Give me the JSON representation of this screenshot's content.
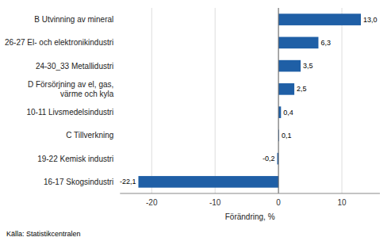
{
  "chart_data": {
    "type": "bar",
    "orientation": "horizontal",
    "categories": [
      "16-17 Skogsindustri",
      "19-22 Kemisk industri",
      "C Tillverkning",
      "10-11 Livsmedelsindustri",
      "D Försörjning av el, gas,\nvärme och kyla",
      "24-30_33 Metallidustri",
      "26-27 El- och elektronikindustri",
      "B Utvinning av mineral"
    ],
    "values": [
      -22.1,
      -0.2,
      0.1,
      0.4,
      2.5,
      3.5,
      6.3,
      13.0
    ],
    "value_labels": [
      "-22,1",
      "-0,2",
      "0,1",
      "0,4",
      "2,5",
      "3,5",
      "6,3",
      "13,0"
    ],
    "data_labels": true,
    "color": "#1f5fa6",
    "xlabel": "Förändring, %",
    "annotations": [
      "Källa: Statistikcentralen"
    ],
    "xlim": [
      -25,
      16
    ],
    "xticks": [
      -20,
      -10,
      0,
      10
    ],
    "grid": true
  }
}
